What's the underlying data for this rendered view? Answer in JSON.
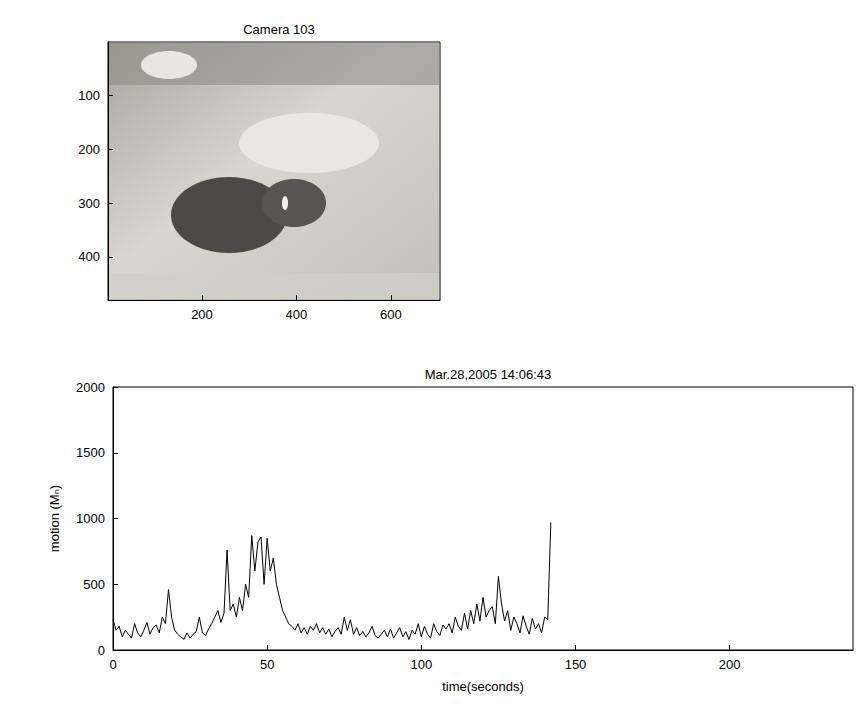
{
  "chart_data": [
    {
      "type": "image",
      "title": "Camera 103",
      "xlim": [
        1,
        704
      ],
      "xticks": [
        200,
        400,
        600
      ],
      "ylim": [
        1,
        480
      ],
      "yticks": [
        100,
        200,
        300,
        400
      ]
    },
    {
      "type": "line",
      "title": "Mar.28,2005 14:06:43",
      "x_label": "time(seconds)",
      "y_label": "motion (Mₙ)",
      "color": "#000000",
      "xlim": [
        0,
        240
      ],
      "xticks": [
        0,
        50,
        100,
        150,
        200
      ],
      "ylim": [
        0,
        2000
      ],
      "yticks": [
        0,
        500,
        1000,
        1500,
        2000
      ],
      "grid": false,
      "x": [
        0,
        1,
        2,
        3,
        4,
        5,
        6,
        7,
        8,
        9,
        10,
        11,
        12,
        13,
        14,
        15,
        16,
        17,
        18,
        19,
        20,
        21,
        22,
        23,
        24,
        25,
        26,
        27,
        28,
        29,
        30,
        31,
        32,
        33,
        34,
        35,
        36,
        37,
        38,
        39,
        40,
        41,
        42,
        43,
        44,
        45,
        46,
        47,
        48,
        49,
        50,
        51,
        52,
        53,
        54,
        55,
        56,
        57,
        58,
        59,
        60,
        61,
        62,
        63,
        64,
        65,
        66,
        67,
        68,
        69,
        70,
        71,
        72,
        73,
        74,
        75,
        76,
        77,
        78,
        79,
        80,
        81,
        82,
        83,
        84,
        85,
        86,
        87,
        88,
        89,
        90,
        91,
        92,
        93,
        94,
        95,
        96,
        97,
        98,
        99,
        100,
        101,
        102,
        103,
        104,
        105,
        106,
        107,
        108,
        109,
        110,
        111,
        112,
        113,
        114,
        115,
        116,
        117,
        118,
        119,
        120,
        121,
        122,
        123,
        124,
        125,
        126,
        127,
        128,
        129,
        130,
        131,
        132,
        133,
        134,
        135,
        136,
        137,
        138,
        139,
        140,
        141,
        142
      ],
      "values": [
        230,
        150,
        180,
        100,
        150,
        120,
        90,
        200,
        130,
        100,
        150,
        210,
        120,
        170,
        190,
        130,
        250,
        200,
        460,
        250,
        150,
        120,
        100,
        80,
        130,
        90,
        120,
        140,
        250,
        130,
        110,
        160,
        200,
        250,
        300,
        210,
        280,
        760,
        300,
        350,
        250,
        400,
        300,
        500,
        400,
        870,
        600,
        820,
        860,
        500,
        850,
        600,
        700,
        500,
        400,
        300,
        250,
        200,
        180,
        150,
        200,
        130,
        170,
        120,
        180,
        150,
        200,
        130,
        170,
        120,
        160,
        100,
        140,
        170,
        120,
        250,
        150,
        230,
        120,
        170,
        110,
        140,
        100,
        130,
        180,
        110,
        90,
        120,
        150,
        100,
        160,
        90,
        130,
        170,
        100,
        140,
        80,
        150,
        120,
        200,
        100,
        180,
        120,
        90,
        200,
        140,
        110,
        190,
        160,
        200,
        130,
        250,
        180,
        150,
        280,
        160,
        300,
        200,
        350,
        220,
        400,
        250,
        300,
        330,
        200,
        560,
        350,
        220,
        300,
        150,
        250,
        200,
        130,
        260,
        180,
        120,
        240,
        160,
        200,
        130,
        250,
        230,
        970
      ]
    }
  ]
}
